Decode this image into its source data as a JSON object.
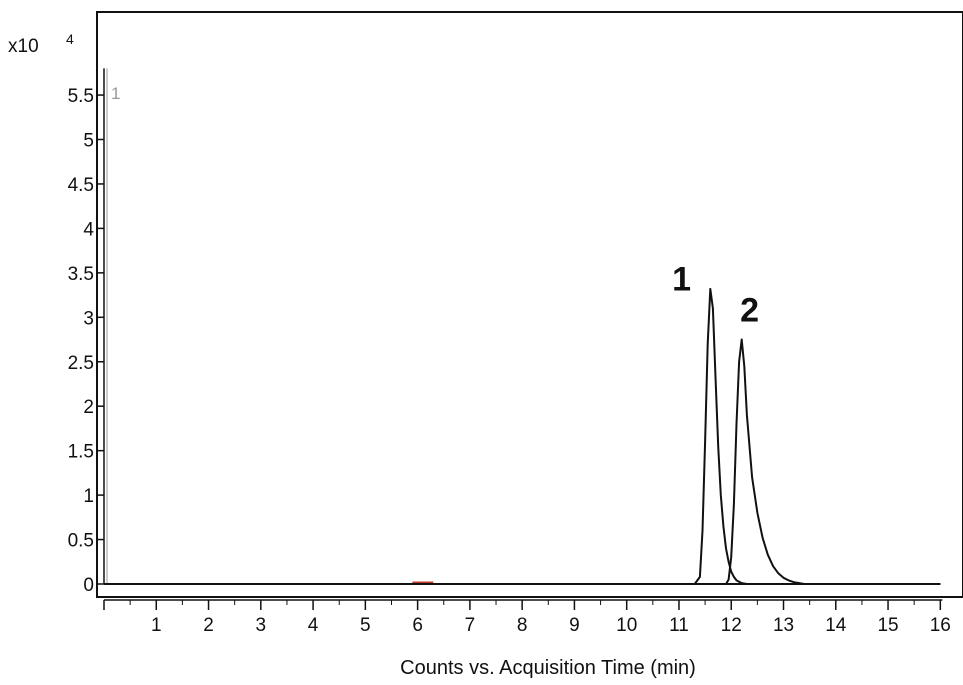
{
  "chart_data": {
    "type": "line",
    "xlabel": "Counts vs. Acquisition Time (min)",
    "y_multiplier": "x10",
    "y_exponent": "4",
    "xlim": [
      0,
      16
    ],
    "ylim": [
      0,
      5.8
    ],
    "x_ticks": [
      1,
      2,
      3,
      4,
      5,
      6,
      7,
      8,
      9,
      10,
      11,
      12,
      13,
      14,
      15,
      16
    ],
    "y_ticks": [
      0,
      0.5,
      1,
      1.5,
      2,
      2.5,
      3,
      3.5,
      4,
      4.5,
      5,
      5.5
    ],
    "trace_number": "1",
    "grid": false,
    "series": [
      {
        "color": "#111111",
        "x": [
          0.0,
          10.8,
          11.3,
          11.4,
          11.45,
          11.5,
          11.55,
          11.6,
          11.65,
          11.7,
          11.75,
          11.8,
          11.85,
          11.9,
          11.95,
          12.0,
          12.05,
          12.1,
          12.2,
          12.3,
          16.0
        ],
        "y": [
          0.0,
          0.0,
          0.0,
          0.08,
          0.6,
          1.6,
          2.7,
          3.32,
          3.1,
          2.3,
          1.55,
          1.0,
          0.65,
          0.4,
          0.25,
          0.14,
          0.08,
          0.04,
          0.01,
          0.0,
          0.0
        ]
      },
      {
        "color": "#111111",
        "x": [
          0.0,
          11.9,
          11.95,
          12.0,
          12.05,
          12.1,
          12.15,
          12.2,
          12.25,
          12.3,
          12.4,
          12.5,
          12.6,
          12.7,
          12.8,
          12.9,
          13.0,
          13.1,
          13.2,
          13.4,
          16.0
        ],
        "y": [
          0.0,
          0.0,
          0.05,
          0.3,
          0.9,
          1.8,
          2.5,
          2.75,
          2.45,
          1.9,
          1.2,
          0.8,
          0.52,
          0.33,
          0.2,
          0.12,
          0.07,
          0.04,
          0.02,
          0.0,
          0.0
        ]
      }
    ],
    "annotations": [
      {
        "text": "1",
        "x": 11.05,
        "y": 3.3
      },
      {
        "text": "2",
        "x": 12.35,
        "y": 2.95
      }
    ]
  }
}
